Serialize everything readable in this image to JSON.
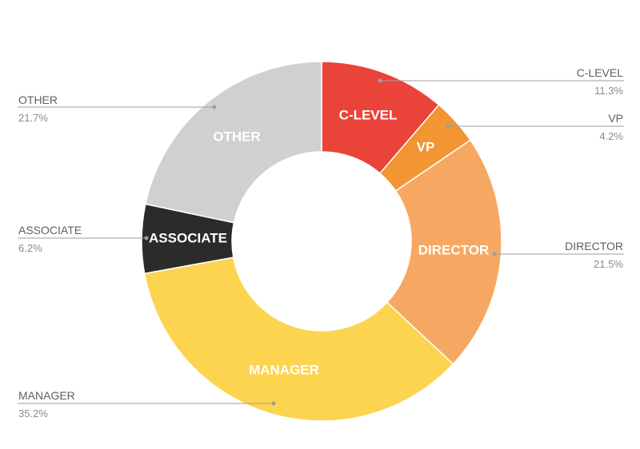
{
  "chart_data": {
    "type": "pie",
    "donut": true,
    "title": "",
    "legend": "callout labels outside each slice",
    "slices": [
      {
        "label": "C-LEVEL",
        "value": 11.3,
        "display": "11.3%",
        "color": "#ea4339"
      },
      {
        "label": "VP",
        "value": 4.2,
        "display": "4.2%",
        "color": "#f29532"
      },
      {
        "label": "DIRECTOR",
        "value": 21.5,
        "display": "21.5%",
        "color": "#f6a862"
      },
      {
        "label": "MANAGER",
        "value": 35.2,
        "display": "35.2%",
        "color": "#fdd44f"
      },
      {
        "label": "ASSOCIATE",
        "value": 6.2,
        "display": "6.2%",
        "color": "#2b2b2b"
      },
      {
        "label": "OTHER",
        "value": 21.7,
        "display": "21.7%",
        "color": "#d0d0d2"
      }
    ]
  }
}
